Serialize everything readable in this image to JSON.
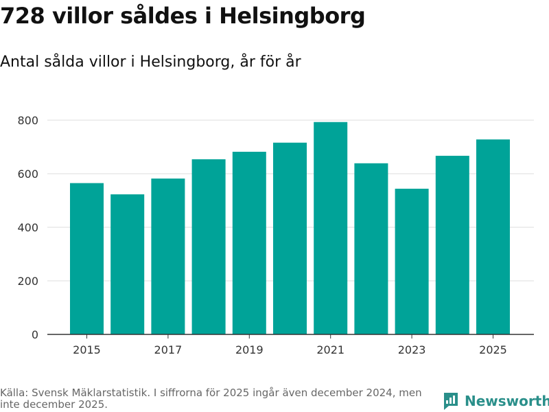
{
  "header": {
    "title": "728 villor såldes i Helsingborg",
    "subtitle": "Antal sålda villor i Helsingborg, år för år"
  },
  "footer": {
    "source": "Källa: Svensk Mäklarstatistik. I siffrorna för 2025 ingår även december 2024, men inte december 2025.",
    "brand": "Newsworthy"
  },
  "colors": {
    "bar": "#00a398",
    "grid": "#dddddd",
    "axis": "#333333",
    "brand": "#2a8f8a"
  },
  "chart_data": {
    "type": "bar",
    "title": "728 villor såldes i Helsingborg",
    "subtitle": "Antal sålda villor i Helsingborg, år för år",
    "xlabel": "",
    "ylabel": "",
    "categories": [
      "2015",
      "2016",
      "2017",
      "2018",
      "2019",
      "2020",
      "2021",
      "2022",
      "2023",
      "2024",
      "2025"
    ],
    "values": [
      565,
      523,
      582,
      654,
      682,
      716,
      793,
      639,
      544,
      667,
      728
    ],
    "x_ticks": [
      "2015",
      "2017",
      "2019",
      "2021",
      "2023",
      "2025"
    ],
    "y_ticks": [
      0,
      200,
      400,
      600,
      800
    ],
    "ylim": [
      0,
      800
    ],
    "grid": true,
    "legend": false
  }
}
